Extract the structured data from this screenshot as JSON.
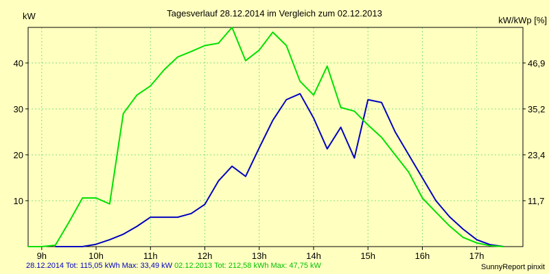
{
  "chart_data": {
    "type": "line",
    "title": "Tagesverlauf 28.12.2014 im Vergleich zum 02.12.2013",
    "ylabel_left": "kW",
    "ylabel_right": "kW/kWp [%]",
    "ylim": [
      0,
      47.75
    ],
    "y_ticks_left": [
      10,
      20,
      30,
      40
    ],
    "y_ticks_right": [
      "11,7",
      "23,4",
      "35,2",
      "46,9"
    ],
    "xlim": [
      8.75,
      17.85
    ],
    "x_ticks": [
      9,
      10,
      11,
      12,
      13,
      14,
      15,
      16,
      17
    ],
    "x_tick_labels": [
      "9h",
      "10h",
      "11h",
      "12h",
      "13h",
      "14h",
      "15h",
      "16h",
      "17h"
    ],
    "series": [
      {
        "name": "28.12.2014",
        "color": "#0000c0",
        "x": [
          9.25,
          9.5,
          9.75,
          10.0,
          10.25,
          10.5,
          10.75,
          11.0,
          11.25,
          11.5,
          11.75,
          12.0,
          12.25,
          12.5,
          12.75,
          13.0,
          13.25,
          13.5,
          13.75,
          14.0,
          14.25,
          14.5,
          14.75,
          15.0,
          15.25,
          15.5,
          15.75,
          16.0,
          16.25,
          16.5,
          16.75,
          17.0,
          17.25,
          17.5
        ],
        "values": [
          0,
          0,
          0,
          0.5,
          1.5,
          2.7,
          4.4,
          6.4,
          6.4,
          6.4,
          7.2,
          9.2,
          14.3,
          17.5,
          15.3,
          21.5,
          27.5,
          32.0,
          33.3,
          28.0,
          21.3,
          26.0,
          19.3,
          32.0,
          31.4,
          25.0,
          20.0,
          15.0,
          10.0,
          6.5,
          3.8,
          1.5,
          0.4,
          0
        ]
      },
      {
        "name": "02.12.2013",
        "color": "#00e000",
        "x": [
          8.75,
          9.0,
          9.25,
          9.5,
          9.75,
          10.0,
          10.25,
          10.5,
          10.75,
          11.0,
          11.25,
          11.5,
          11.75,
          12.0,
          12.25,
          12.5,
          12.75,
          13.0,
          13.25,
          13.5,
          13.75,
          14.0,
          14.25,
          14.5,
          14.75,
          15.0,
          15.25,
          15.5,
          15.75,
          16.0,
          16.25,
          16.5,
          16.75,
          17.0,
          17.25,
          17.5
        ],
        "values": [
          0,
          0,
          0.3,
          5.3,
          10.6,
          10.6,
          9.3,
          29.0,
          33.0,
          35.0,
          38.5,
          41.3,
          42.5,
          43.8,
          44.3,
          47.75,
          40.5,
          42.8,
          46.7,
          43.8,
          36.0,
          33.0,
          39.3,
          30.3,
          29.5,
          26.5,
          23.8,
          20.0,
          16.2,
          10.6,
          7.5,
          4.5,
          2.0,
          0.8,
          0.2,
          0
        ]
      }
    ]
  },
  "legend": {
    "series1_text": "28.12.2014 Tot: 115,05 kWh Max: 33,49 kW",
    "series2_text": "02.12.2013 Tot: 212,58 kWh Max: 47,75 kW"
  },
  "footer": {
    "credit": "SunnyReport pinxit"
  },
  "colors": {
    "background": "#ffffc0",
    "grid": "#7fe07f",
    "series1": "#0000c0",
    "series2": "#00e000"
  }
}
